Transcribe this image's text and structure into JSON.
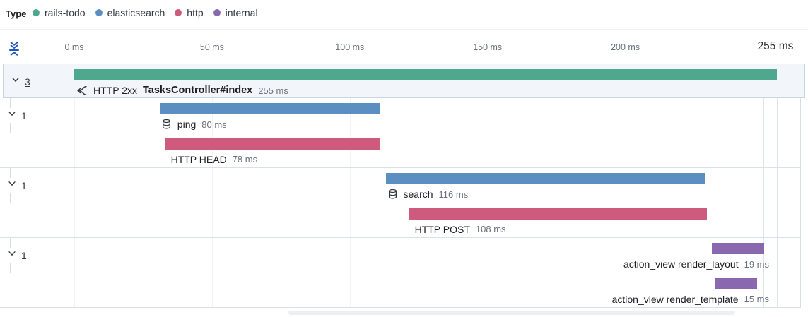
{
  "legend": {
    "title": "Type",
    "items": [
      {
        "label": "rails-todo",
        "color": "#4DA88D"
      },
      {
        "label": "elasticsearch",
        "color": "#5B8FC1"
      },
      {
        "label": "http",
        "color": "#CE5A7E"
      },
      {
        "label": "internal",
        "color": "#8A68AF"
      }
    ]
  },
  "axis": {
    "ticks": [
      {
        "label": "0 ms",
        "ms": 0,
        "emphasis": false
      },
      {
        "label": "50 ms",
        "ms": 50,
        "emphasis": false
      },
      {
        "label": "100 ms",
        "ms": 100,
        "emphasis": false
      },
      {
        "label": "150 ms",
        "ms": 150,
        "emphasis": false
      },
      {
        "label": "200 ms",
        "ms": 200,
        "emphasis": false
      },
      {
        "label": "255 ms",
        "ms": 255,
        "emphasis": true
      }
    ],
    "gridline_ms": [
      0,
      50,
      100,
      150,
      200,
      250
    ],
    "end_line_ms": 255,
    "max_ms": 255
  },
  "chart_data": {
    "type": "bar",
    "variant": "trace-waterfall",
    "unit": "ms",
    "xlim": [
      0,
      255
    ],
    "title": "",
    "rows": [
      {
        "service": "rails-todo",
        "color": "#4DA88D",
        "depth": 0,
        "selected": true,
        "toggle": {
          "count": "3",
          "underlined": true
        },
        "icon": "merge-icon",
        "prefix": "HTTP 2xx",
        "name": "TasksController#index",
        "name_bold": true,
        "duration_label": "255 ms",
        "start_ms": 0,
        "duration_ms": 255,
        "label_align": "left"
      },
      {
        "service": "elasticsearch",
        "color": "#5B8FC1",
        "depth": 1,
        "selected": false,
        "toggle": {
          "count": "1",
          "underlined": false
        },
        "icon": "database-icon",
        "prefix": "",
        "name": "ping",
        "name_bold": false,
        "duration_label": "80 ms",
        "start_ms": 31,
        "duration_ms": 80,
        "label_align": "left"
      },
      {
        "service": "http",
        "color": "#CE5A7E",
        "depth": 2,
        "selected": false,
        "toggle": null,
        "icon": null,
        "prefix": "",
        "name": "HTTP HEAD",
        "name_bold": false,
        "duration_label": "78 ms",
        "start_ms": 33,
        "duration_ms": 78,
        "label_align": "left"
      },
      {
        "service": "elasticsearch",
        "color": "#5B8FC1",
        "depth": 1,
        "selected": false,
        "toggle": {
          "count": "1",
          "underlined": false
        },
        "icon": "database-icon",
        "prefix": "",
        "name": "search",
        "name_bold": false,
        "duration_label": "116 ms",
        "start_ms": 113,
        "duration_ms": 116,
        "label_align": "left"
      },
      {
        "service": "http",
        "color": "#CE5A7E",
        "depth": 2,
        "selected": false,
        "toggle": null,
        "icon": null,
        "prefix": "",
        "name": "HTTP POST",
        "name_bold": false,
        "duration_label": "108 ms",
        "start_ms": 121.5,
        "duration_ms": 108,
        "label_align": "left"
      },
      {
        "service": "internal",
        "color": "#8A68AF",
        "depth": 1,
        "selected": false,
        "toggle": {
          "count": "1",
          "underlined": false
        },
        "icon": null,
        "prefix": "",
        "name": "action_view render_layout",
        "name_bold": false,
        "duration_label": "19 ms",
        "start_ms": 231.3,
        "duration_ms": 19,
        "label_align": "right"
      },
      {
        "service": "internal",
        "color": "#8A68AF",
        "depth": 2,
        "selected": false,
        "toggle": null,
        "icon": null,
        "prefix": "",
        "name": "action_view render_template",
        "name_bold": false,
        "duration_label": "15 ms",
        "start_ms": 232.7,
        "duration_ms": 15,
        "label_align": "right"
      }
    ]
  }
}
